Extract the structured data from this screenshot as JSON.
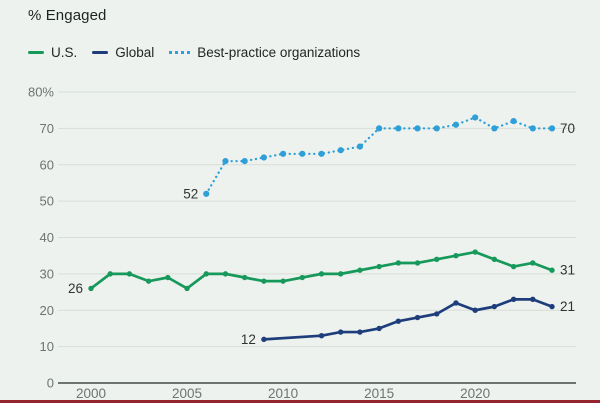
{
  "title": "% Engaged",
  "legend": {
    "items": [
      {
        "label": "U.S.",
        "color": "#17995b",
        "style": "solid"
      },
      {
        "label": "Global",
        "color": "#1e3d7b",
        "style": "solid"
      },
      {
        "label": "Best-practice organizations",
        "color": "#2f9fd8",
        "style": "dotted"
      }
    ]
  },
  "colors": {
    "background": "#edf2ee",
    "gridline": "#d8ddd6",
    "axis_line": "#454b47",
    "tick_text": "#6e7471",
    "annotation_text": "#2f3431",
    "title_text": "#1d2320",
    "bottom_bar": "#96242f"
  },
  "chart_data": {
    "type": "line",
    "title": "% Engaged",
    "ylim": [
      0,
      80
    ],
    "yticks": [
      0,
      10,
      20,
      30,
      40,
      50,
      60,
      70,
      80
    ],
    "ytick_labels": [
      "0",
      "10",
      "20",
      "30",
      "40",
      "50",
      "60",
      "70",
      "80%"
    ],
    "xticks": [
      2000,
      2005,
      2010,
      2015,
      2020
    ],
    "xtick_labels": [
      "2000",
      "2005",
      "2010",
      "2015",
      "2020"
    ],
    "grid": "horizontal",
    "legend_position": "top-left",
    "series": [
      {
        "key": "us",
        "name": "U.S.",
        "color": "#17995b",
        "style": "solid",
        "start_label": "26",
        "end_label": "31",
        "points": [
          [
            2000,
            26
          ],
          [
            2001,
            30
          ],
          [
            2002,
            30
          ],
          [
            2003,
            28
          ],
          [
            2004,
            29
          ],
          [
            2005,
            26
          ],
          [
            2006,
            30
          ],
          [
            2007,
            30
          ],
          [
            2008,
            29
          ],
          [
            2009,
            28
          ],
          [
            2010,
            28
          ],
          [
            2011,
            29
          ],
          [
            2012,
            30
          ],
          [
            2013,
            30
          ],
          [
            2014,
            31
          ],
          [
            2015,
            32
          ],
          [
            2016,
            33
          ],
          [
            2017,
            33
          ],
          [
            2018,
            34
          ],
          [
            2019,
            35
          ],
          [
            2020,
            36
          ],
          [
            2021,
            34
          ],
          [
            2022,
            32
          ],
          [
            2023,
            33
          ],
          [
            2024,
            31
          ]
        ]
      },
      {
        "key": "global",
        "name": "Global",
        "color": "#1e3d7b",
        "style": "solid",
        "start_label": "12",
        "end_label": "21",
        "points": [
          [
            2009,
            12
          ],
          [
            2012,
            13
          ],
          [
            2013,
            14
          ],
          [
            2014,
            14
          ],
          [
            2015,
            15
          ],
          [
            2016,
            17
          ],
          [
            2017,
            18
          ],
          [
            2018,
            19
          ],
          [
            2019,
            22
          ],
          [
            2020,
            20
          ],
          [
            2021,
            21
          ],
          [
            2022,
            23
          ],
          [
            2023,
            23
          ],
          [
            2024,
            21
          ]
        ]
      },
      {
        "key": "best-practice",
        "name": "Best-practice organizations",
        "color": "#2f9fd8",
        "style": "dotted",
        "start_label": "52",
        "end_label": "70",
        "points": [
          [
            2006,
            52
          ],
          [
            2007,
            61
          ],
          [
            2008,
            61
          ],
          [
            2009,
            62
          ],
          [
            2010,
            63
          ],
          [
            2011,
            63
          ],
          [
            2012,
            63
          ],
          [
            2013,
            64
          ],
          [
            2014,
            65
          ],
          [
            2015,
            70
          ],
          [
            2016,
            70
          ],
          [
            2017,
            70
          ],
          [
            2018,
            70
          ],
          [
            2019,
            71
          ],
          [
            2020,
            73
          ],
          [
            2021,
            70
          ],
          [
            2022,
            72
          ],
          [
            2023,
            70
          ],
          [
            2024,
            70
          ]
        ]
      }
    ]
  }
}
